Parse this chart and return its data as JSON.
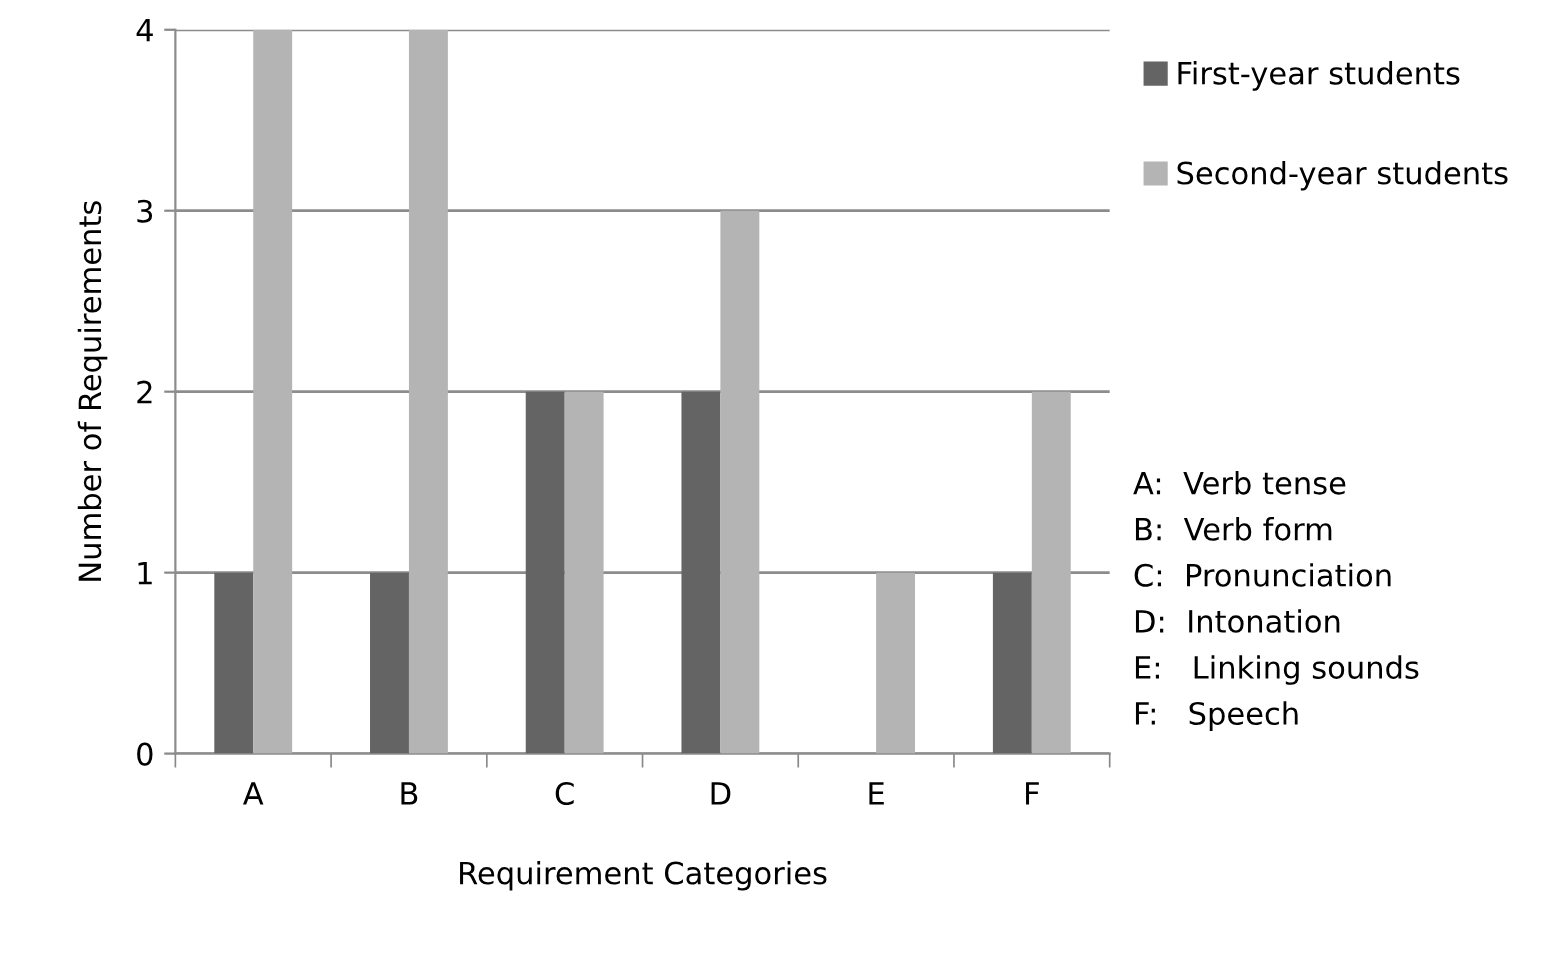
{
  "chart_data": {
    "type": "bar",
    "xlabel": "Requirement Categories",
    "ylabel": "Number of Requirements",
    "categories": [
      "A",
      "B",
      "C",
      "D",
      "E",
      "F"
    ],
    "series": [
      {
        "name": "First-year students",
        "color": "#646464",
        "values": [
          1,
          1,
          2,
          2,
          0,
          1
        ]
      },
      {
        "name": "Second-year students",
        "color": "#b4b4b4",
        "values": [
          4,
          4,
          2,
          3,
          1,
          2
        ]
      }
    ],
    "ylim": [
      0,
      4
    ],
    "yticks": [
      0,
      1,
      2,
      3,
      4
    ],
    "grid": "y",
    "legend": "right",
    "annotations": [
      "A:  Verb tense",
      "B:  Verb form",
      "C:  Pronunciation",
      "D:  Intonation",
      "E:   Linking sounds",
      "F:   Speech"
    ]
  }
}
